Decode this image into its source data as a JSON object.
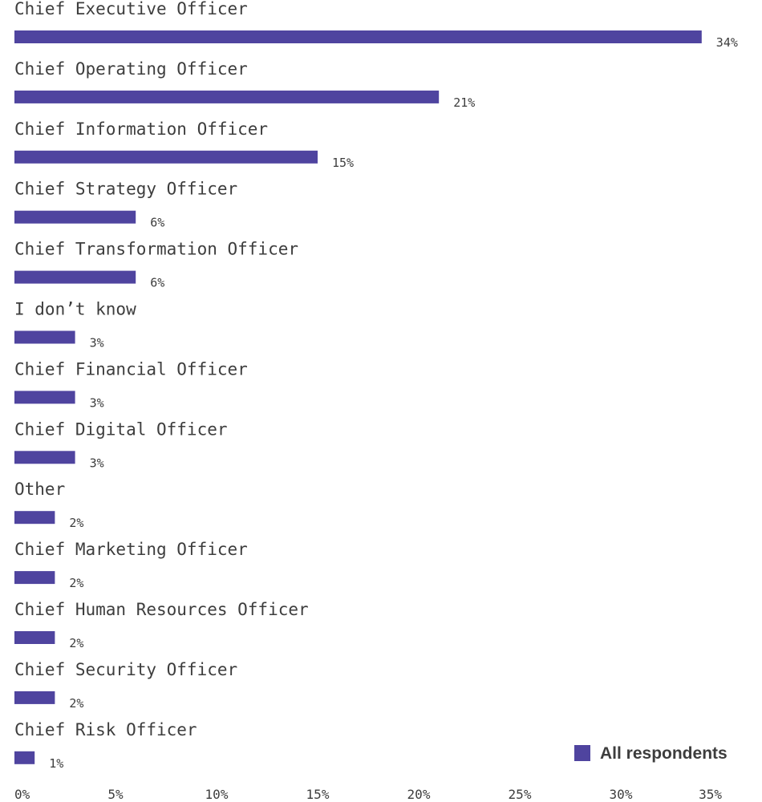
{
  "chart_data": {
    "type": "bar",
    "orientation": "horizontal",
    "categories": [
      "Chief Executive Officer",
      "Chief Operating Officer",
      "Chief Information Officer",
      "Chief Strategy Officer",
      "Chief Transformation Officer",
      "I don’t know",
      "Chief Financial Officer",
      "Chief Digital Officer",
      "Other",
      "Chief Marketing Officer",
      "Chief Human Resources Officer",
      "Chief Security Officer",
      "Chief Risk Officer"
    ],
    "series": [
      {
        "name": "All respondents",
        "values": [
          34,
          21,
          15,
          6,
          6,
          3,
          3,
          3,
          2,
          2,
          2,
          2,
          1
        ],
        "value_labels": [
          "34%",
          "21%",
          "15%",
          "6%",
          "6%",
          "3%",
          "3%",
          "3%",
          "2%",
          "2%",
          "2%",
          "2%",
          "1%"
        ]
      }
    ],
    "xlim": [
      0,
      35
    ],
    "x_ticks": [
      "0%",
      "5%",
      "10%",
      "15%",
      "20%",
      "25%",
      "30%",
      "35%"
    ],
    "grid": false,
    "legend_position": "bottom-right",
    "colors": {
      "bar": "#4f449f",
      "text": "#3d3d3d"
    }
  }
}
